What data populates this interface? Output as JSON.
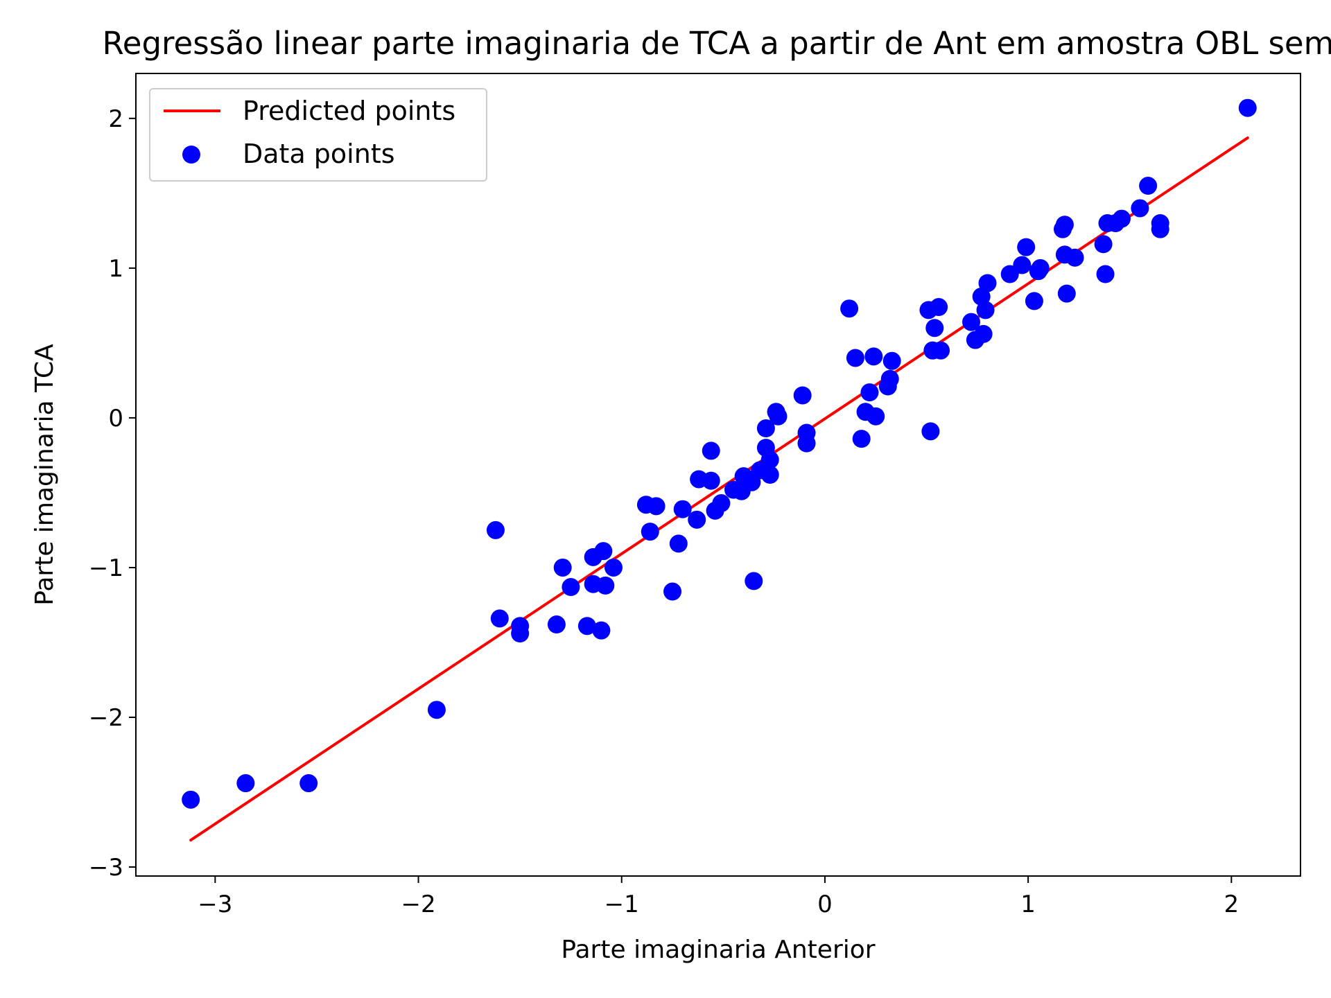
{
  "chart_data": {
    "type": "scatter",
    "title": "Regressão linear parte imaginaria de TCA a partir de Ant em amostra OBL sem",
    "xlabel": "Parte imaginaria Anterior",
    "ylabel": "Parte imaginaria TCA",
    "xlim": [
      -3.39,
      2.34
    ],
    "ylim": [
      -3.06,
      2.3
    ],
    "xticks": [
      {
        "value": -3,
        "label": "−3"
      },
      {
        "value": -2,
        "label": "−2"
      },
      {
        "value": -1,
        "label": "−1"
      },
      {
        "value": 0,
        "label": "0"
      },
      {
        "value": 1,
        "label": "1"
      },
      {
        "value": 2,
        "label": "2"
      }
    ],
    "yticks": [
      {
        "value": -3,
        "label": "−3"
      },
      {
        "value": -2,
        "label": "−2"
      },
      {
        "value": -1,
        "label": "−1"
      },
      {
        "value": 0,
        "label": "0"
      },
      {
        "value": 1,
        "label": "1"
      },
      {
        "value": 2,
        "label": "2"
      }
    ],
    "grid": false,
    "legend_position": "top-left",
    "series": [
      {
        "name": "Predicted points",
        "kind": "line",
        "color": "#ff0000",
        "points": [
          [
            -3.12,
            -2.82
          ],
          [
            2.08,
            1.87
          ]
        ]
      },
      {
        "name": "Data points",
        "kind": "scatter",
        "color": "#0000ff",
        "points": [
          [
            -3.12,
            -2.55
          ],
          [
            -2.85,
            -2.44
          ],
          [
            -2.54,
            -2.44
          ],
          [
            -1.91,
            -1.95
          ],
          [
            -1.62,
            -0.75
          ],
          [
            -1.6,
            -1.34
          ],
          [
            -1.5,
            -1.39
          ],
          [
            -1.5,
            -1.44
          ],
          [
            -1.32,
            -1.38
          ],
          [
            -1.29,
            -1.0
          ],
          [
            -1.25,
            -1.13
          ],
          [
            -1.17,
            -1.39
          ],
          [
            -1.14,
            -1.11
          ],
          [
            -1.14,
            -0.93
          ],
          [
            -1.1,
            -1.42
          ],
          [
            -1.09,
            -0.89
          ],
          [
            -1.08,
            -1.12
          ],
          [
            -1.04,
            -1.0
          ],
          [
            -0.88,
            -0.58
          ],
          [
            -0.86,
            -0.76
          ],
          [
            -0.83,
            -0.59
          ],
          [
            -0.75,
            -1.16
          ],
          [
            -0.72,
            -0.84
          ],
          [
            -0.7,
            -0.61
          ],
          [
            -0.63,
            -0.68
          ],
          [
            -0.62,
            -0.41
          ],
          [
            -0.56,
            -0.22
          ],
          [
            -0.56,
            -0.42
          ],
          [
            -0.54,
            -0.62
          ],
          [
            -0.51,
            -0.57
          ],
          [
            -0.45,
            -0.48
          ],
          [
            -0.41,
            -0.49
          ],
          [
            -0.4,
            -0.39
          ],
          [
            -0.36,
            -0.43
          ],
          [
            -0.35,
            -1.09
          ],
          [
            -0.32,
            -0.35
          ],
          [
            -0.29,
            -0.07
          ],
          [
            -0.29,
            -0.2
          ],
          [
            -0.27,
            -0.28
          ],
          [
            -0.27,
            -0.38
          ],
          [
            -0.24,
            0.04
          ],
          [
            -0.23,
            0.01
          ],
          [
            -0.11,
            0.15
          ],
          [
            -0.09,
            -0.1
          ],
          [
            -0.09,
            -0.17
          ],
          [
            0.12,
            0.73
          ],
          [
            0.15,
            0.4
          ],
          [
            0.18,
            -0.14
          ],
          [
            0.2,
            0.04
          ],
          [
            0.22,
            0.17
          ],
          [
            0.24,
            0.41
          ],
          [
            0.25,
            0.01
          ],
          [
            0.31,
            0.21
          ],
          [
            0.32,
            0.26
          ],
          [
            0.33,
            0.38
          ],
          [
            0.51,
            0.72
          ],
          [
            0.52,
            -0.09
          ],
          [
            0.53,
            0.45
          ],
          [
            0.54,
            0.6
          ],
          [
            0.56,
            0.74
          ],
          [
            0.57,
            0.45
          ],
          [
            0.72,
            0.64
          ],
          [
            0.74,
            0.52
          ],
          [
            0.77,
            0.81
          ],
          [
            0.78,
            0.56
          ],
          [
            0.79,
            0.72
          ],
          [
            0.8,
            0.9
          ],
          [
            0.91,
            0.96
          ],
          [
            0.97,
            1.02
          ],
          [
            0.99,
            1.14
          ],
          [
            1.03,
            0.78
          ],
          [
            1.05,
            0.98
          ],
          [
            1.06,
            1.0
          ],
          [
            1.17,
            1.26
          ],
          [
            1.18,
            1.09
          ],
          [
            1.18,
            1.29
          ],
          [
            1.19,
            0.83
          ],
          [
            1.23,
            1.07
          ],
          [
            1.37,
            1.16
          ],
          [
            1.38,
            0.96
          ],
          [
            1.39,
            1.3
          ],
          [
            1.43,
            1.3
          ],
          [
            1.46,
            1.33
          ],
          [
            1.55,
            1.4
          ],
          [
            1.59,
            1.55
          ],
          [
            1.65,
            1.26
          ],
          [
            1.65,
            1.3
          ],
          [
            2.08,
            2.07
          ]
        ]
      }
    ]
  }
}
